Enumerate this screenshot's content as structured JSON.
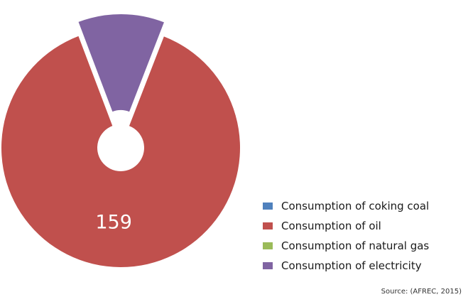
{
  "chart_data": {
    "type": "pie",
    "style": "donut",
    "categories": [
      "Consumption of coking coal",
      "Consumption of oil",
      "Consumption of natural gas",
      "Consumption of electricity"
    ],
    "values": [
      0,
      159,
      0,
      21
    ],
    "data_labels": [
      "",
      "159",
      "",
      ""
    ],
    "colors": [
      "#4f81bd",
      "#c0504d",
      "#9bbb59",
      "#8064a2"
    ],
    "exploded": [
      false,
      false,
      false,
      true
    ],
    "legend_position": "bottom-right",
    "source": "Source: (AFREC, 2015)"
  }
}
